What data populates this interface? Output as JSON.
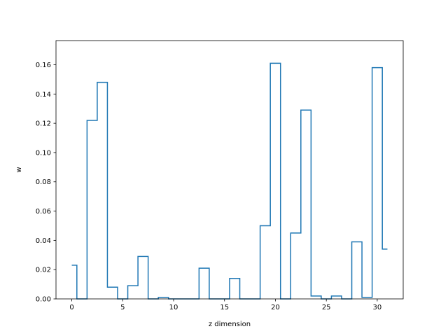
{
  "chart_data": {
    "type": "line",
    "drawstyle": "steps-mid",
    "title": "",
    "xlabel": "z dimension",
    "ylabel": "w",
    "xlim": [
      -1.55,
      32.55
    ],
    "ylim": [
      0,
      0.1765
    ],
    "xticks": [
      0,
      5,
      10,
      15,
      20,
      25,
      30
    ],
    "yticks": [
      0.0,
      0.02,
      0.04,
      0.06,
      0.08,
      0.1,
      0.12,
      0.14,
      0.16
    ],
    "ytick_labels": [
      "0.00",
      "0.02",
      "0.04",
      "0.06",
      "0.08",
      "0.10",
      "0.12",
      "0.14",
      "0.16"
    ],
    "grid": false,
    "legend": "none",
    "line_color": "#1f77b4",
    "x": [
      0,
      1,
      2,
      3,
      4,
      5,
      6,
      7,
      8,
      9,
      10,
      11,
      12,
      13,
      14,
      15,
      16,
      17,
      18,
      19,
      20,
      21,
      22,
      23,
      24,
      25,
      26,
      27,
      28,
      29,
      30,
      31
    ],
    "values": [
      0.023,
      0.0,
      0.122,
      0.148,
      0.008,
      0.0,
      0.009,
      0.029,
      0.0,
      0.001,
      0.0,
      0.0,
      0.0,
      0.021,
      0.0,
      0.0,
      0.014,
      0.0,
      0.0,
      0.05,
      0.161,
      0.0,
      0.045,
      0.129,
      0.002,
      0.0,
      0.002,
      0.0,
      0.039,
      0.001,
      0.158,
      0.034
    ]
  }
}
